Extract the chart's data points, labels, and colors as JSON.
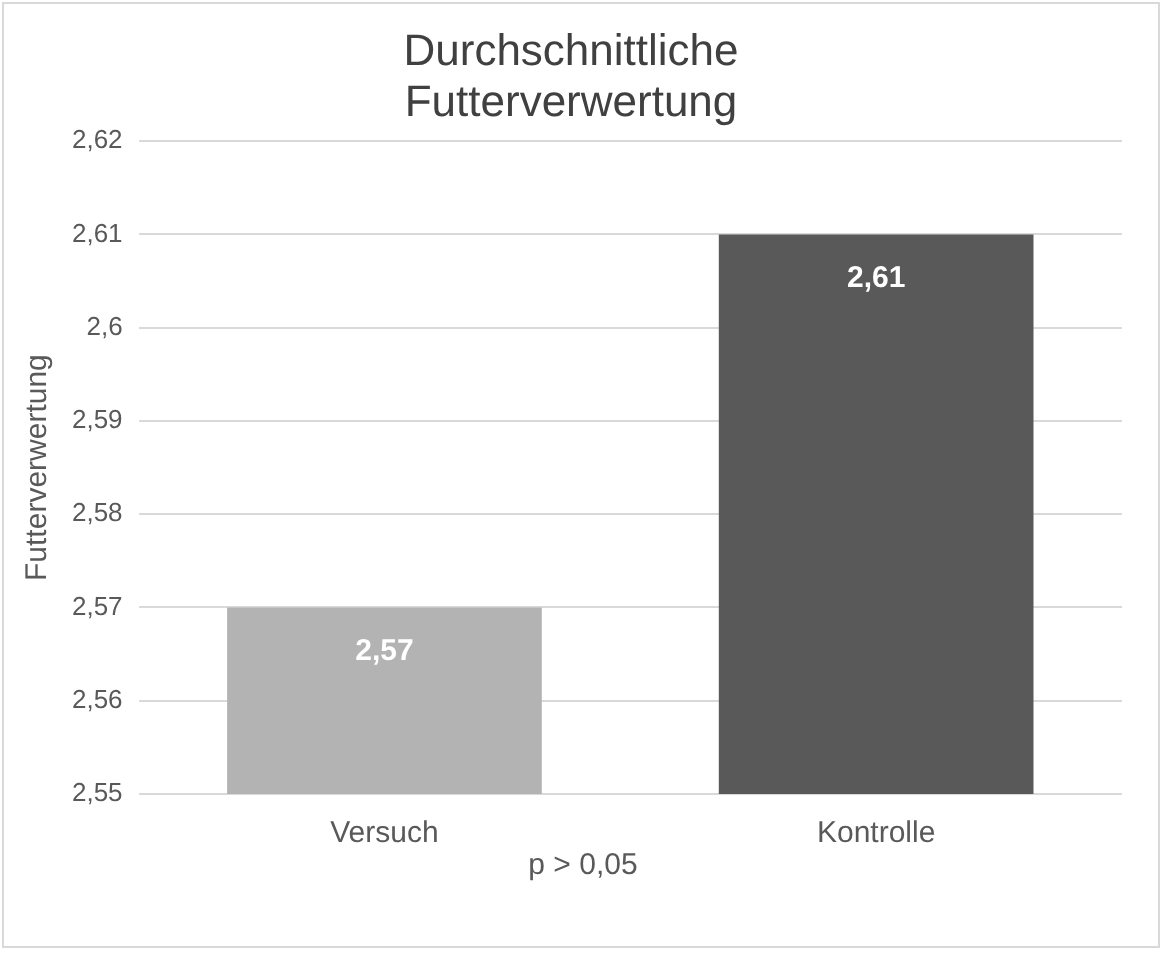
{
  "chart_data": {
    "type": "bar",
    "title": "Durchschnittliche\nFutterverwertung",
    "ylabel": "Futterverwertung",
    "categories": [
      "Versuch",
      "Kontrolle"
    ],
    "values": [
      2.57,
      2.61
    ],
    "colors": [
      "#b3b3b3",
      "#595959"
    ],
    "value_labels": [
      "2,57",
      "2,61"
    ],
    "ylim": [
      2.55,
      2.62
    ],
    "yticks": [
      {
        "value": 2.55,
        "label": "2,55"
      },
      {
        "value": 2.56,
        "label": "2,56"
      },
      {
        "value": 2.57,
        "label": "2,57"
      },
      {
        "value": 2.58,
        "label": "2,58"
      },
      {
        "value": 2.59,
        "label": "2,59"
      },
      {
        "value": 2.6,
        "label": "2,6"
      },
      {
        "value": 2.61,
        "label": "2,61"
      },
      {
        "value": 2.62,
        "label": "2,62"
      }
    ],
    "grid": "y",
    "legend": false,
    "annotations": [
      "p > 0,05"
    ]
  }
}
